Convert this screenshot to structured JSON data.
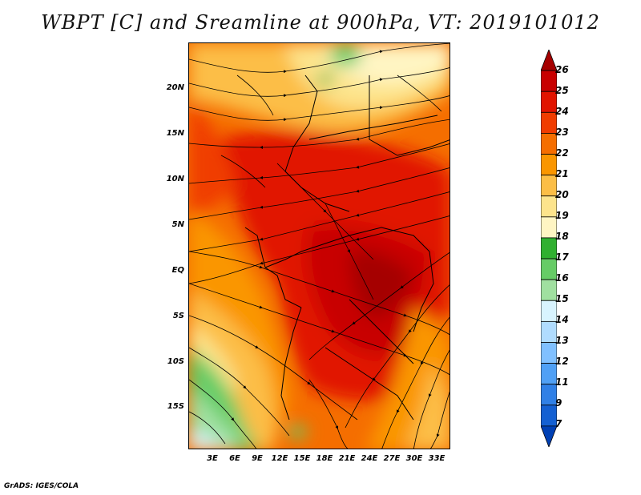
{
  "title": "WBPT [C] and Sreamline at 900hPa, VT: 2019101012",
  "footer": "GrADS: IGES/COLA",
  "map": {
    "lat_labels": [
      "20N",
      "15N",
      "10N",
      "5N",
      "EQ",
      "5S",
      "10S",
      "15S"
    ],
    "lon_labels": [
      "3E",
      "6E",
      "9E",
      "12E",
      "15E",
      "18E",
      "21E",
      "24E",
      "27E",
      "30E",
      "33E"
    ]
  },
  "colorbar": {
    "labels": [
      "26",
      "25",
      "24",
      "23",
      "22",
      "21",
      "20",
      "19",
      "18",
      "17",
      "16",
      "15",
      "14",
      "13",
      "12",
      "11",
      "9",
      "7"
    ],
    "colors": [
      "#a50000",
      "#c80000",
      "#e11400",
      "#f03c00",
      "#f56e00",
      "#fa9600",
      "#fcbe46",
      "#fde48c",
      "#fff5c3",
      "#30b030",
      "#66cc66",
      "#a0e0a0",
      "#d8f4ff",
      "#b0dcff",
      "#80c0ff",
      "#50a0f5",
      "#3080e6",
      "#1460d2",
      "#0040b4"
    ]
  }
}
